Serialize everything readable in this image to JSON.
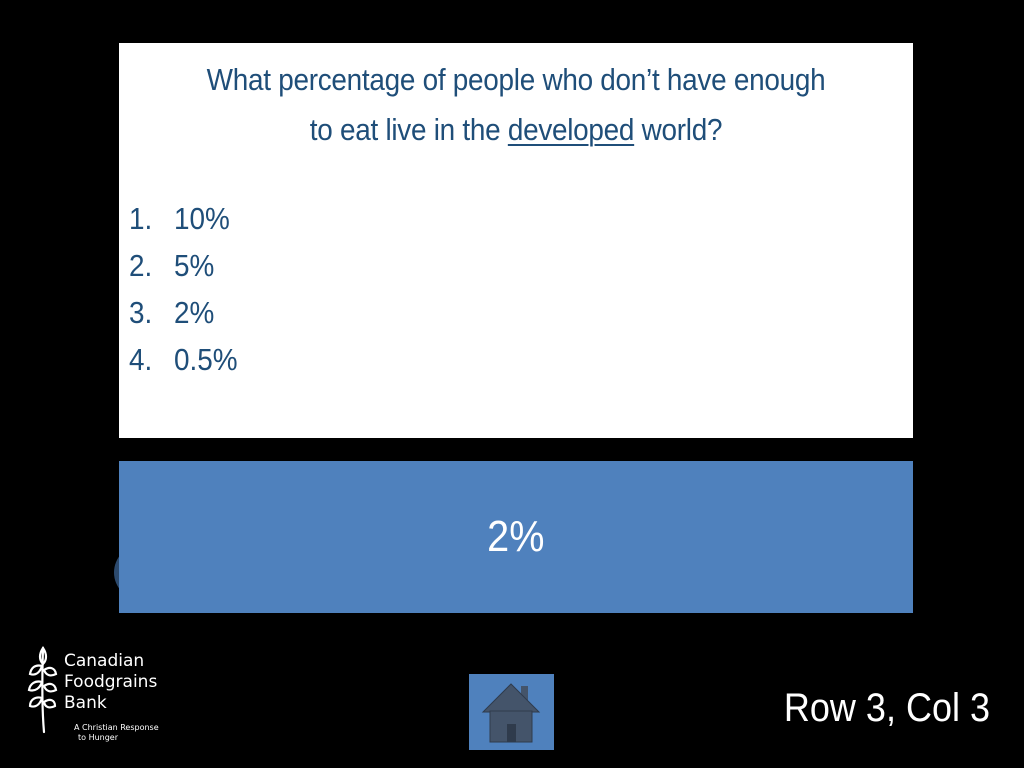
{
  "question": {
    "line1": "What percentage of people who don’t have enough",
    "line2_before": "to eat live in the ",
    "line2_emphasis": "developed",
    "line2_after": " world?"
  },
  "options": [
    {
      "number": "1.",
      "value": "10%"
    },
    {
      "number": "2.",
      "value": "5%"
    },
    {
      "number": "3.",
      "value": "2%"
    },
    {
      "number": "4.",
      "value": "0.5%"
    }
  ],
  "answer": "2%",
  "logo": {
    "name_line1": "Canadian",
    "name_line2": "Foodgrains",
    "name_line3": "Bank",
    "tagline_line1": "A Christian Response",
    "tagline_line2": "to Hunger"
  },
  "home_button": {
    "icon": "home-icon"
  },
  "slide_label": "Row 3, Col 3",
  "colors": {
    "background": "#000000",
    "question_bg": "#ffffff",
    "question_text": "#1f4e79",
    "answer_bg": "#4f81bd",
    "answer_text": "#ffffff"
  }
}
